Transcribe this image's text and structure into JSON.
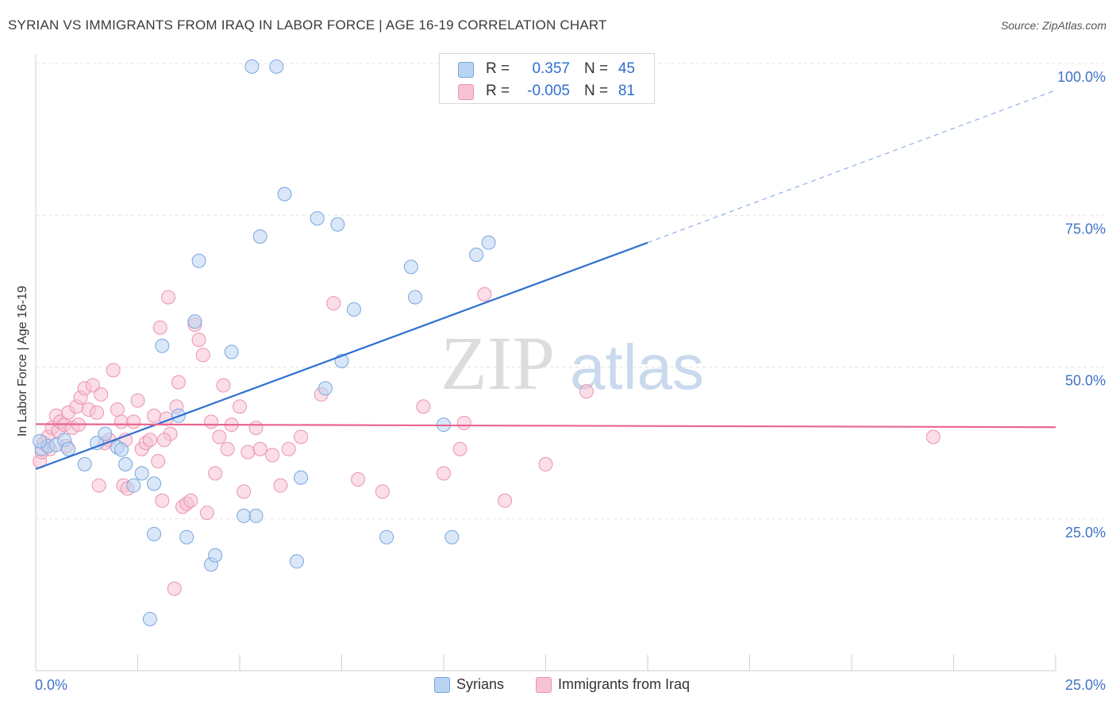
{
  "header": {
    "title": "SYRIAN VS IMMIGRANTS FROM IRAQ IN LABOR FORCE | AGE 16-19 CORRELATION CHART",
    "source": "Source: ZipAtlas.com"
  },
  "watermark": {
    "zip": "ZIP",
    "atlas": "atlas"
  },
  "legend": {
    "rows": [
      {
        "r_label": "R =",
        "r_value": "0.357",
        "n_label": "N =",
        "n_value": "45"
      },
      {
        "r_label": "R =",
        "r_value": "-0.005",
        "n_label": "N =",
        "n_value": "81"
      }
    ],
    "bottom": [
      {
        "label": "Syrians"
      },
      {
        "label": "Immigrants from Iraq"
      }
    ]
  },
  "colors": {
    "syrians_fill": "#b9d3f3",
    "syrians_stroke": "#7aa6de",
    "syrians_line": "#3070d0",
    "iraq_fill": "#f7c3d3",
    "iraq_stroke": "#eb93b0",
    "iraq_line": "#e8658f",
    "axis_label": "#3f72c8",
    "grid": "#e3e3e3"
  },
  "chart_data": {
    "type": "scatter",
    "title": "SYRIAN VS IMMIGRANTS FROM IRAQ IN LABOR FORCE | AGE 16-19 CORRELATION CHART",
    "xlabel": "",
    "ylabel": "In Labor Force | Age 16-19",
    "xlim": [
      0,
      25
    ],
    "ylim": [
      0,
      100
    ],
    "x_tick_labels": [
      "0.0%",
      "25.0%"
    ],
    "y_ticks": [
      25,
      50,
      75,
      100
    ],
    "y_tick_labels": [
      "25.0%",
      "50.0%",
      "75.0%",
      "100.0%"
    ],
    "grid": true,
    "legend_position": "top-center",
    "series": [
      {
        "name": "Syrians",
        "r": 0.357,
        "n": 45,
        "trend": {
          "x0": 0,
          "y0": 33.2,
          "x1": 15,
          "y1": 70.5,
          "dashed_to_x": 25,
          "dashed_to_y": 95.6
        },
        "points": [
          [
            0.15,
            36.5
          ],
          [
            0.3,
            37.0
          ],
          [
            0.5,
            37.2
          ],
          [
            0.7,
            38.0
          ],
          [
            0.8,
            36.5
          ],
          [
            1.2,
            34.0
          ],
          [
            1.5,
            37.5
          ],
          [
            1.7,
            39.0
          ],
          [
            2.0,
            36.8
          ],
          [
            2.1,
            36.4
          ],
          [
            2.2,
            34.0
          ],
          [
            2.4,
            30.5
          ],
          [
            2.6,
            32.5
          ],
          [
            2.9,
            30.8
          ],
          [
            2.8,
            8.5
          ],
          [
            2.9,
            22.5
          ],
          [
            3.1,
            53.5
          ],
          [
            3.5,
            42.0
          ],
          [
            3.7,
            22.0
          ],
          [
            3.9,
            57.5
          ],
          [
            4.0,
            67.5
          ],
          [
            4.3,
            17.5
          ],
          [
            4.4,
            19.0
          ],
          [
            4.8,
            52.5
          ],
          [
            5.1,
            25.5
          ],
          [
            5.4,
            25.5
          ],
          [
            5.5,
            71.5
          ],
          [
            5.3,
            99.5
          ],
          [
            5.9,
            99.5
          ],
          [
            6.1,
            78.5
          ],
          [
            6.4,
            18.0
          ],
          [
            6.5,
            31.8
          ],
          [
            6.9,
            74.5
          ],
          [
            7.1,
            46.5
          ],
          [
            7.4,
            73.5
          ],
          [
            7.5,
            51.0
          ],
          [
            7.8,
            59.5
          ],
          [
            8.6,
            22.0
          ],
          [
            9.2,
            66.5
          ],
          [
            9.3,
            61.5
          ],
          [
            10.0,
            40.5
          ],
          [
            10.2,
            22.0
          ],
          [
            10.8,
            68.5
          ],
          [
            11.1,
            70.5
          ],
          [
            0.1,
            37.8
          ]
        ]
      },
      {
        "name": "Immigrants from Iraq",
        "r": -0.005,
        "n": 81,
        "trend": {
          "x0": 0,
          "y0": 40.6,
          "x1": 25,
          "y1": 40.1
        },
        "points": [
          [
            0.1,
            34.5
          ],
          [
            0.15,
            36.0
          ],
          [
            0.2,
            37.5
          ],
          [
            0.3,
            38.5
          ],
          [
            0.4,
            40.0
          ],
          [
            0.5,
            42.0
          ],
          [
            0.55,
            39.5
          ],
          [
            0.6,
            41.0
          ],
          [
            0.7,
            40.5
          ],
          [
            0.8,
            42.5
          ],
          [
            0.9,
            40.0
          ],
          [
            1.0,
            43.5
          ],
          [
            1.1,
            45.0
          ],
          [
            1.2,
            46.5
          ],
          [
            1.3,
            43.0
          ],
          [
            1.4,
            47.0
          ],
          [
            1.5,
            42.5
          ],
          [
            1.6,
            45.5
          ],
          [
            1.7,
            37.5
          ],
          [
            1.8,
            38.0
          ],
          [
            1.9,
            49.5
          ],
          [
            2.0,
            43.0
          ],
          [
            2.1,
            41.0
          ],
          [
            2.2,
            38.0
          ],
          [
            2.4,
            41.0
          ],
          [
            2.5,
            44.5
          ],
          [
            2.6,
            36.5
          ],
          [
            2.7,
            37.5
          ],
          [
            2.8,
            38.0
          ],
          [
            2.9,
            42.0
          ],
          [
            3.0,
            34.5
          ],
          [
            3.1,
            28.0
          ],
          [
            3.2,
            41.5
          ],
          [
            3.3,
            39.0
          ],
          [
            3.4,
            13.5
          ],
          [
            3.5,
            47.5
          ],
          [
            3.6,
            27.0
          ],
          [
            3.7,
            27.5
          ],
          [
            3.8,
            28.0
          ],
          [
            3.9,
            57.0
          ],
          [
            4.0,
            54.5
          ],
          [
            4.1,
            52.0
          ],
          [
            4.2,
            26.0
          ],
          [
            4.4,
            32.5
          ],
          [
            4.5,
            38.5
          ],
          [
            4.7,
            36.5
          ],
          [
            4.8,
            40.5
          ],
          [
            5.0,
            43.5
          ],
          [
            5.1,
            29.5
          ],
          [
            5.2,
            36.0
          ],
          [
            5.5,
            36.5
          ],
          [
            5.8,
            35.5
          ],
          [
            6.0,
            30.5
          ],
          [
            6.5,
            38.5
          ],
          [
            7.0,
            45.5
          ],
          [
            7.3,
            60.5
          ],
          [
            7.9,
            31.5
          ],
          [
            8.5,
            29.5
          ],
          [
            9.5,
            43.5
          ],
          [
            10.0,
            32.5
          ],
          [
            10.4,
            36.5
          ],
          [
            10.5,
            40.8
          ],
          [
            11.0,
            62.0
          ],
          [
            11.5,
            28.0
          ],
          [
            12.5,
            34.0
          ],
          [
            13.5,
            46.0
          ],
          [
            22.0,
            38.5
          ],
          [
            1.55,
            30.5
          ],
          [
            2.15,
            30.5
          ],
          [
            3.45,
            43.5
          ],
          [
            3.25,
            61.5
          ],
          [
            4.6,
            47.0
          ],
          [
            3.05,
            56.5
          ],
          [
            0.35,
            36.5
          ],
          [
            1.05,
            40.5
          ],
          [
            0.75,
            37.0
          ],
          [
            2.25,
            30.0
          ],
          [
            3.15,
            38.0
          ],
          [
            4.3,
            41.0
          ],
          [
            5.4,
            40.0
          ],
          [
            6.2,
            36.5
          ]
        ]
      }
    ]
  }
}
